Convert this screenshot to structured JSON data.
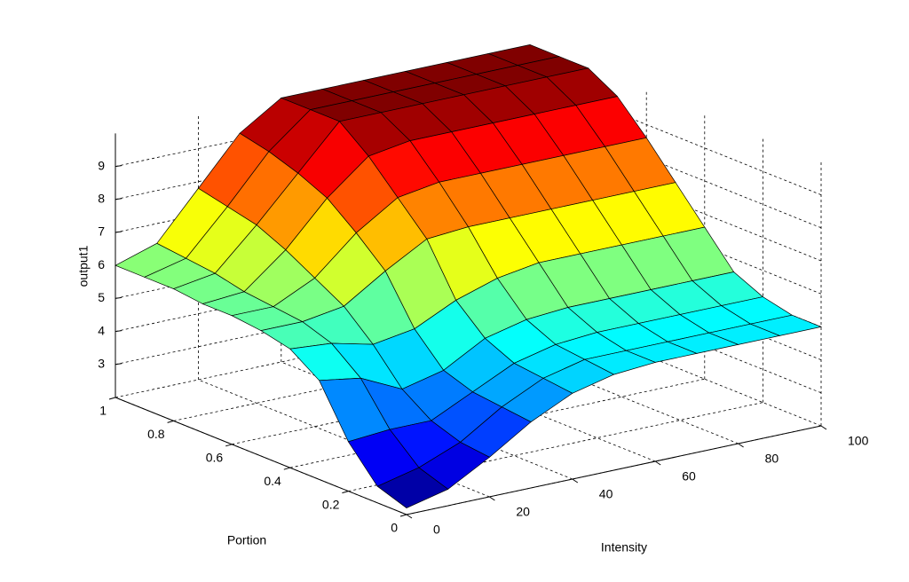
{
  "chart_data": {
    "type": "surface",
    "xlabel": "Intensity",
    "ylabel": "Portion",
    "zlabel": "output1",
    "x": [
      0,
      10,
      20,
      30,
      40,
      50,
      60,
      70,
      80,
      90,
      100
    ],
    "y": [
      0,
      0.1,
      0.2,
      0.3,
      0.4,
      0.5,
      0.6,
      0.7,
      0.8,
      0.9,
      1
    ],
    "z": [
      [
        2.2,
        2.5,
        3.2,
        4.0,
        4.6,
        4.9,
        5.0,
        5.0,
        5.0,
        5.0,
        5.0
      ],
      [
        2.5,
        2.8,
        3.3,
        4.1,
        4.7,
        5.0,
        5.0,
        5.0,
        5.0,
        5.0,
        5.0
      ],
      [
        3.5,
        3.6,
        3.6,
        4.2,
        4.8,
        5.1,
        5.2,
        5.2,
        5.2,
        5.2,
        5.2
      ],
      [
        5.0,
        4.8,
        4.2,
        4.5,
        5.2,
        5.5,
        5.6,
        5.6,
        5.6,
        5.6,
        5.6
      ],
      [
        5.6,
        5.5,
        5.2,
        5.4,
        6.0,
        6.4,
        6.6,
        6.6,
        6.6,
        6.6,
        6.6
      ],
      [
        5.8,
        5.8,
        6.0,
        6.8,
        7.5,
        7.6,
        7.6,
        7.6,
        7.6,
        7.6,
        7.6
      ],
      [
        5.9,
        5.9,
        6.5,
        7.6,
        8.4,
        8.6,
        8.6,
        8.6,
        8.6,
        8.6,
        8.6
      ],
      [
        5.9,
        6.0,
        7.0,
        8.3,
        9.3,
        9.5,
        9.5,
        9.5,
        9.5,
        9.5,
        9.5
      ],
      [
        6.0,
        6.2,
        7.4,
        8.7,
        10,
        10,
        10,
        10,
        10,
        10,
        10
      ],
      [
        6.0,
        6.3,
        7.6,
        9.0,
        10,
        10,
        10,
        10,
        10,
        10,
        10
      ],
      [
        6.0,
        6.4,
        7.8,
        9.2,
        10,
        10,
        10,
        10,
        10,
        10,
        10
      ]
    ],
    "xlim": [
      0,
      100
    ],
    "ylim": [
      0,
      1
    ],
    "zlim": [
      2,
      10
    ],
    "xticks": [
      0,
      20,
      40,
      60,
      80,
      100
    ],
    "yticks": [
      0,
      0.2,
      0.4,
      0.6,
      0.8,
      1
    ],
    "zticks": [
      3,
      4,
      5,
      6,
      7,
      8,
      9
    ],
    "colormap": "jet",
    "grid": true
  }
}
